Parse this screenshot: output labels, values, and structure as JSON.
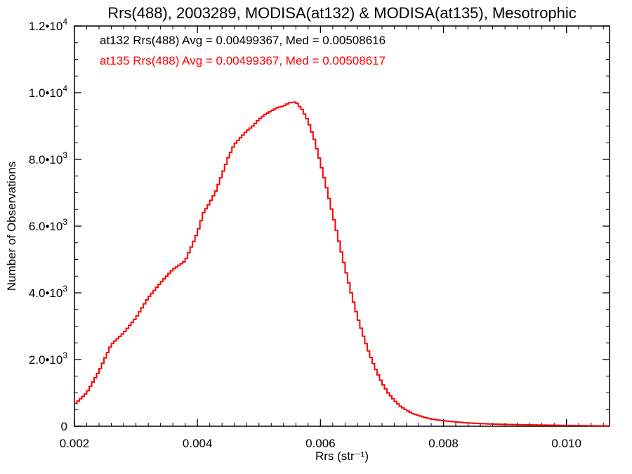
{
  "chart_data": {
    "type": "line",
    "title": "Rrs(488), 2003289, MODISA(at132) & MODISA(at135), Mesotrophic",
    "xlabel": "Rrs (str⁻¹)",
    "ylabel": "Number of Observations",
    "xlim": [
      0.002,
      0.0107
    ],
    "ylim": [
      0,
      12000
    ],
    "xticks": [
      {
        "value": 0.002,
        "label": "0.002"
      },
      {
        "value": 0.004,
        "label": "0.004"
      },
      {
        "value": 0.006,
        "label": "0.006"
      },
      {
        "value": 0.008,
        "label": "0.008"
      },
      {
        "value": 0.01,
        "label": "0.010"
      }
    ],
    "yticks": [
      {
        "value": 0,
        "mant": "0",
        "exp": ""
      },
      {
        "value": 2000,
        "mant": "2.0•10",
        "exp": "3"
      },
      {
        "value": 4000,
        "mant": "4.0•10",
        "exp": "3"
      },
      {
        "value": 6000,
        "mant": "6.0•10",
        "exp": "3"
      },
      {
        "value": 8000,
        "mant": "8.0•10",
        "exp": "3"
      },
      {
        "value": 10000,
        "mant": "1.0•10",
        "exp": "4"
      },
      {
        "value": 12000,
        "mant": "1.2•10",
        "exp": "4"
      }
    ],
    "grid": false,
    "legend_position": "top-left",
    "annotations": [
      {
        "text": "at132 Rrs(488) Avg = 0.00499367, Med = 0.00508616",
        "color": "#000000"
      },
      {
        "text": "at135 Rrs(488) Avg = 0.00499367, Med = 0.00508617",
        "color": "#ff0000"
      }
    ],
    "series": [
      {
        "color": "#ff0000",
        "style": "step",
        "points": [
          [
            0.002,
            650
          ],
          [
            0.0022,
            1000
          ],
          [
            0.0024,
            1650
          ],
          [
            0.0026,
            2450
          ],
          [
            0.0028,
            2800
          ],
          [
            0.003,
            3250
          ],
          [
            0.0032,
            3850
          ],
          [
            0.0034,
            4300
          ],
          [
            0.0036,
            4700
          ],
          [
            0.0038,
            4950
          ],
          [
            0.004,
            5800
          ],
          [
            0.0041,
            6400
          ],
          [
            0.0042,
            6700
          ],
          [
            0.0043,
            7050
          ],
          [
            0.0044,
            7550
          ],
          [
            0.0045,
            8050
          ],
          [
            0.0046,
            8450
          ],
          [
            0.0047,
            8650
          ],
          [
            0.0048,
            8850
          ],
          [
            0.0049,
            9000
          ],
          [
            0.005,
            9200
          ],
          [
            0.0051,
            9350
          ],
          [
            0.0052,
            9450
          ],
          [
            0.0053,
            9550
          ],
          [
            0.0054,
            9600
          ],
          [
            0.0055,
            9700
          ],
          [
            0.0056,
            9720
          ],
          [
            0.0057,
            9500
          ],
          [
            0.0058,
            9150
          ],
          [
            0.0059,
            8600
          ],
          [
            0.006,
            7900
          ],
          [
            0.0061,
            7150
          ],
          [
            0.0062,
            6350
          ],
          [
            0.0063,
            5550
          ],
          [
            0.0064,
            4750
          ],
          [
            0.0065,
            4000
          ],
          [
            0.0066,
            3300
          ],
          [
            0.0067,
            2700
          ],
          [
            0.0068,
            2150
          ],
          [
            0.0069,
            1700
          ],
          [
            0.007,
            1300
          ],
          [
            0.0071,
            1000
          ],
          [
            0.0072,
            780
          ],
          [
            0.0073,
            600
          ],
          [
            0.0074,
            480
          ],
          [
            0.0075,
            380
          ],
          [
            0.0076,
            320
          ],
          [
            0.0077,
            260
          ],
          [
            0.0078,
            220
          ],
          [
            0.0079,
            190
          ],
          [
            0.008,
            165
          ],
          [
            0.0082,
            130
          ],
          [
            0.0084,
            100
          ],
          [
            0.0086,
            80
          ],
          [
            0.0088,
            65
          ],
          [
            0.009,
            55
          ],
          [
            0.0093,
            45
          ],
          [
            0.0096,
            35
          ],
          [
            0.01,
            25
          ],
          [
            0.0104,
            15
          ],
          [
            0.0107,
            10
          ]
        ]
      }
    ]
  }
}
